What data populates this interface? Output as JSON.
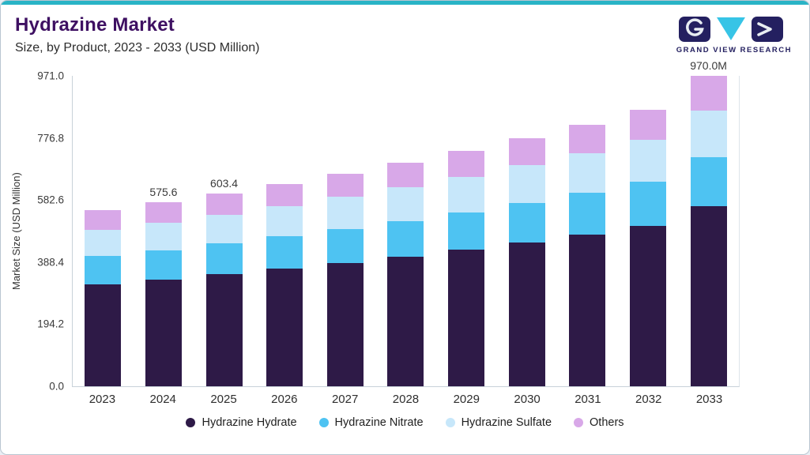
{
  "header": {
    "title": "Hydrazine Market",
    "subtitle": "Size, by Product, 2023 - 2033 (USD Million)",
    "logo_text": "GRAND VIEW RESEARCH"
  },
  "colors": {
    "accent_teal": "#29b4c6",
    "title_purple": "#3e1062",
    "logo_navy": "#242060",
    "logo_cyan": "#37c4e6",
    "axis_line": "#c8d1d9"
  },
  "chart_data": {
    "type": "bar",
    "stacked": true,
    "title": "Hydrazine Market",
    "subtitle": "Size, by Product, 2023 - 2033 (USD Million)",
    "xlabel": "",
    "ylabel": "Market Size (USD Million)",
    "ylim": [
      0,
      971.0
    ],
    "yticks": [
      0,
      194.2,
      388.4,
      582.6,
      776.8,
      971.0
    ],
    "ytick_labels": [
      "0.0",
      "194.2",
      "388.4",
      "582.6",
      "776.8",
      "971.0"
    ],
    "grid": false,
    "legend_position": "bottom",
    "categories": [
      "2023",
      "2024",
      "2025",
      "2026",
      "2027",
      "2028",
      "2029",
      "2030",
      "2031",
      "2032",
      "2033"
    ],
    "series": [
      {
        "name": "Hydrazine Hydrate",
        "color": "#2e1a47",
        "values": [
          319.0,
          333.8,
          350.0,
          367.1,
          385.7,
          405.4,
          426.9,
          450.1,
          475.0,
          501.7,
          562.6
        ]
      },
      {
        "name": "Hydrazine Nitrate",
        "color": "#4ec3f2",
        "values": [
          88.0,
          92.1,
          96.5,
          101.3,
          106.4,
          111.8,
          117.8,
          124.2,
          131.0,
          138.4,
          155.2
        ]
      },
      {
        "name": "Hydrazine Sulfate",
        "color": "#c7e7fa",
        "values": [
          82.5,
          86.3,
          90.5,
          95.0,
          99.8,
          104.9,
          110.4,
          116.4,
          122.9,
          129.8,
          145.5
        ]
      },
      {
        "name": "Others",
        "color": "#d8a8e8",
        "values": [
          60.5,
          63.4,
          66.4,
          69.6,
          73.1,
          76.9,
          81.0,
          85.3,
          90.1,
          95.1,
          106.7
        ]
      }
    ],
    "totals": [
      550.0,
      575.6,
      603.4,
      633.0,
      665.0,
      699.0,
      736.1,
      776.0,
      819.0,
      865.0,
      970.0
    ],
    "value_labels": [
      "",
      "575.6",
      "603.4",
      "",
      "",
      "",
      "",
      "",
      "",
      "",
      "970.0M"
    ]
  }
}
